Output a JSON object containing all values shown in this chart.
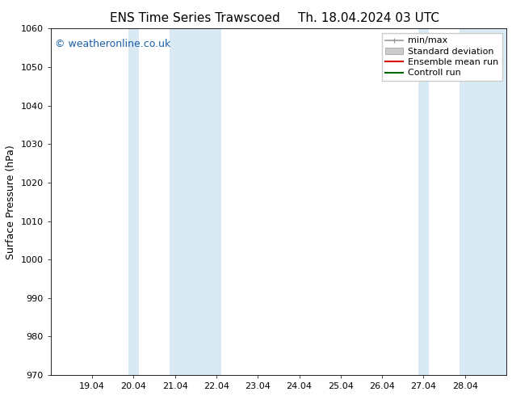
{
  "title_left": "ENS Time Series Trawscoed",
  "title_right": "Th. 18.04.2024 03 UTC",
  "ylabel": "Surface Pressure (hPa)",
  "ylim": [
    970,
    1060
  ],
  "yticks": [
    970,
    980,
    990,
    1000,
    1010,
    1020,
    1030,
    1040,
    1050,
    1060
  ],
  "xtick_labels": [
    "19.04",
    "20.04",
    "21.04",
    "22.04",
    "23.04",
    "24.04",
    "25.04",
    "26.04",
    "27.04",
    "28.04"
  ],
  "xtick_positions": [
    1,
    2,
    3,
    4,
    5,
    6,
    7,
    8,
    9,
    10
  ],
  "xlim": [
    0.0,
    11.0
  ],
  "shaded_bands": [
    {
      "x_start": 1.875,
      "x_end": 2.125
    },
    {
      "x_start": 2.875,
      "x_end": 4.125
    },
    {
      "x_start": 8.875,
      "x_end": 9.125
    },
    {
      "x_start": 9.875,
      "x_end": 11.0
    }
  ],
  "shaded_color": "#daeaf5",
  "watermark": "© weatheronline.co.uk",
  "watermark_color": "#1a5fa8",
  "background_color": "#ffffff",
  "plot_bg_color": "#ffffff",
  "legend_items": [
    {
      "label": "min/max",
      "color": "#999999",
      "style": "line_caps"
    },
    {
      "label": "Standard deviation",
      "color": "#cccccc",
      "style": "filled"
    },
    {
      "label": "Ensemble mean run",
      "color": "#dd0000",
      "style": "line"
    },
    {
      "label": "Controll run",
      "color": "#006600",
      "style": "line"
    }
  ],
  "title_fontsize": 11,
  "ylabel_fontsize": 9,
  "tick_fontsize": 8,
  "watermark_fontsize": 9,
  "legend_fontsize": 8
}
